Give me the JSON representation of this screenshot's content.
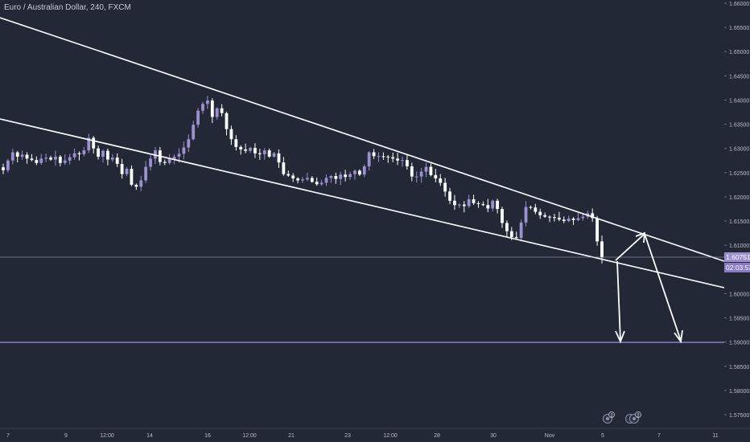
{
  "header": {
    "title": "Euro / Australian Dollar, 240, FXCM"
  },
  "price_scale": {
    "ticks": [
      "1.66000",
      "1.65500",
      "1.65000",
      "1.64500",
      "1.64000",
      "1.63500",
      "1.63000",
      "1.62500",
      "1.62000",
      "1.61500",
      "1.61000",
      "1.60500",
      "1.60000",
      "1.59500",
      "1.59000",
      "1.58500",
      "1.58000",
      "1.57500"
    ],
    "current_price": "1.60751",
    "countdown": "02:03:53"
  },
  "time_scale": {
    "ticks": [
      "7",
      "9",
      "12:00",
      "14",
      "16",
      "12:00",
      "21",
      "23",
      "12:00",
      "28",
      "30",
      "Nov",
      "5",
      "7",
      "11"
    ]
  },
  "event_badges": [
    {
      "label": "2"
    },
    {
      "label": "2"
    }
  ],
  "colors": {
    "background": "#232836",
    "bull_candle": "#9d8fd0",
    "bear_candle": "#ffffff",
    "trendline": "#ffffff",
    "target_line": "#8a7cc4",
    "price_line": "#9aa0b8"
  },
  "chart_data": {
    "type": "candlestick",
    "symbol": "Euro / Australian Dollar",
    "interval": "240",
    "source": "FXCM",
    "ylim": [
      1.5722,
      1.6608
    ],
    "current_price": 1.60751,
    "target_level": 1.59,
    "close_path": [
      1.6255,
      1.6275,
      1.6292,
      1.6283,
      1.6287,
      1.6279,
      1.6276,
      1.627,
      1.6279,
      1.6281,
      1.6277,
      1.6283,
      1.627,
      1.6275,
      1.6282,
      1.629,
      1.6288,
      1.6296,
      1.6322,
      1.63,
      1.6283,
      1.6295,
      1.6277,
      1.6281,
      1.6268,
      1.6247,
      1.6258,
      1.6225,
      1.6221,
      1.6234,
      1.6262,
      1.6279,
      1.6296,
      1.6272,
      1.627,
      1.6278,
      1.6283,
      1.6289,
      1.6302,
      1.6319,
      1.6349,
      1.6378,
      1.6392,
      1.6399,
      1.6365,
      1.6383,
      1.6373,
      1.634,
      1.6319,
      1.6303,
      1.6298,
      1.6295,
      1.6301,
      1.629,
      1.6288,
      1.6296,
      1.6283,
      1.629,
      1.6271,
      1.6247,
      1.6244,
      1.6238,
      1.6234,
      1.6236,
      1.6239,
      1.6231,
      1.6226,
      1.6229,
      1.6239,
      1.6243,
      1.6237,
      1.6246,
      1.6241,
      1.6247,
      1.6254,
      1.6246,
      1.6263,
      1.6292,
      1.6284,
      1.6284,
      1.6283,
      1.6282,
      1.6279,
      1.6275,
      1.6276,
      1.6263,
      1.6242,
      1.6242,
      1.6252,
      1.6262,
      1.6245,
      1.6238,
      1.6229,
      1.6211,
      1.6192,
      1.6183,
      1.6184,
      1.6181,
      1.6195,
      1.6187,
      1.6185,
      1.6183,
      1.6176,
      1.6192,
      1.6175,
      1.6146,
      1.6129,
      1.6117,
      1.6115,
      1.6147,
      1.6179,
      1.6178,
      1.6169,
      1.6162,
      1.6159,
      1.6158,
      1.6157,
      1.6153,
      1.615,
      1.6155,
      1.6152,
      1.6156,
      1.6159,
      1.6166,
      1.6156,
      1.6108,
      1.6075
    ]
  },
  "annotations": {
    "upper_trendline": "falling resistance",
    "lower_trendline": "falling support",
    "projection_arrows": [
      "down to 1.59000",
      "up to upper trendline then down to 1.59000"
    ]
  }
}
